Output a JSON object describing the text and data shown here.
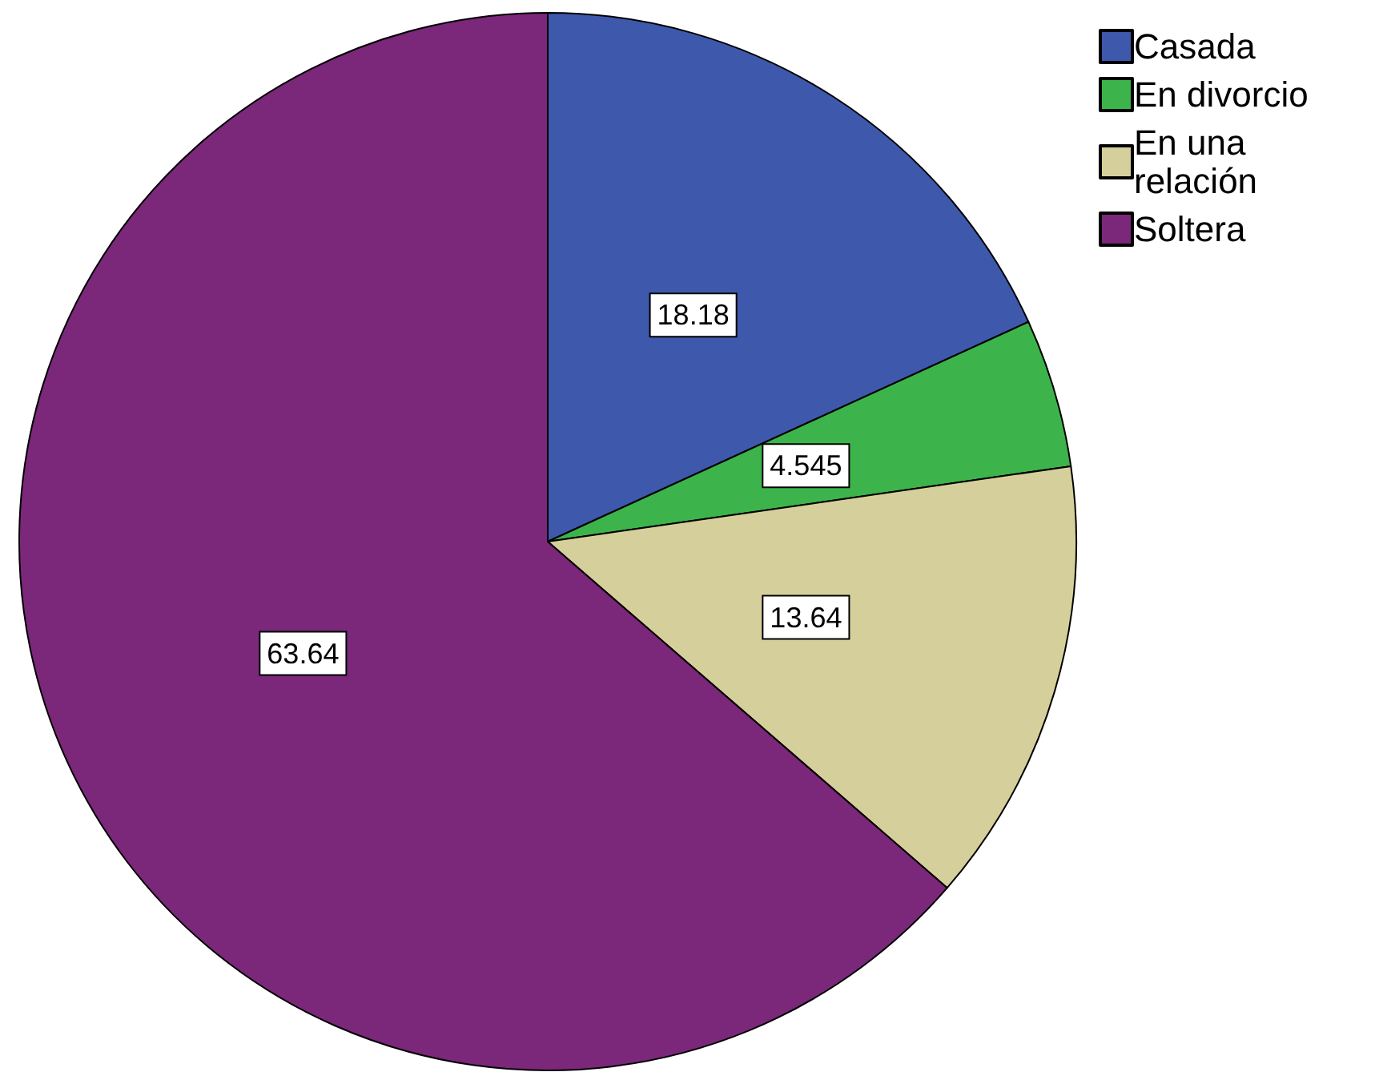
{
  "chart_data": {
    "type": "pie",
    "categories": [
      "Casada",
      "En divorcio",
      "En una relación",
      "Soltera"
    ],
    "values": [
      18.18,
      4.545,
      13.64,
      63.64
    ],
    "colors": [
      "#3e58ac",
      "#3cb44b",
      "#d5d09b",
      "#7b277a"
    ],
    "data_labels": true,
    "legend": "top right"
  }
}
